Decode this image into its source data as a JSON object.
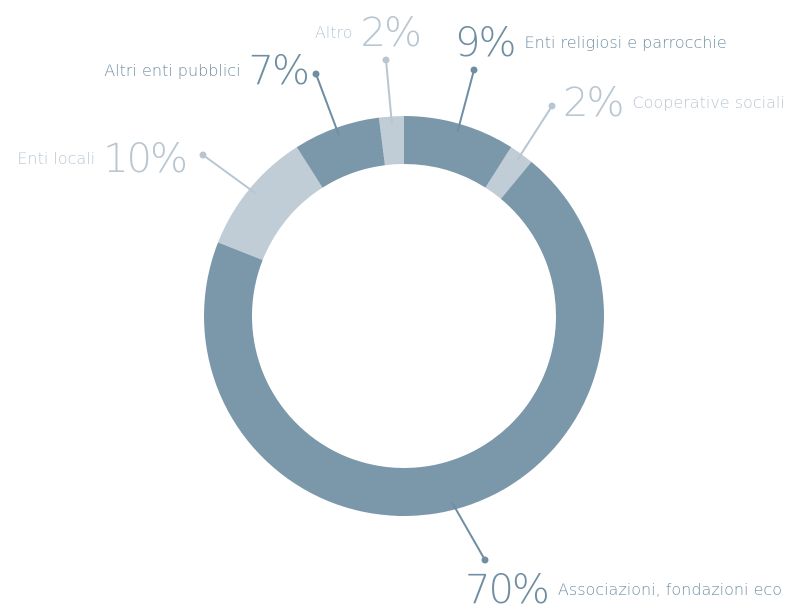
{
  "chart_data": {
    "type": "donut",
    "categories": [
      "Enti religiosi e parrocchie",
      "Cooperative sociali",
      "Associazioni, fondazioni eco",
      "Enti locali",
      "Altri enti pubblici",
      "Altro"
    ],
    "values": [
      9,
      2,
      70,
      10,
      7,
      2
    ],
    "value_labels": [
      "9%",
      "2%",
      "70%",
      "10%",
      "7%",
      "2%"
    ],
    "colors": [
      "#7b98aa",
      "#c0ccd6",
      "#7b98aa",
      "#c0ccd6",
      "#7b98aa",
      "#c0ccd6"
    ]
  }
}
